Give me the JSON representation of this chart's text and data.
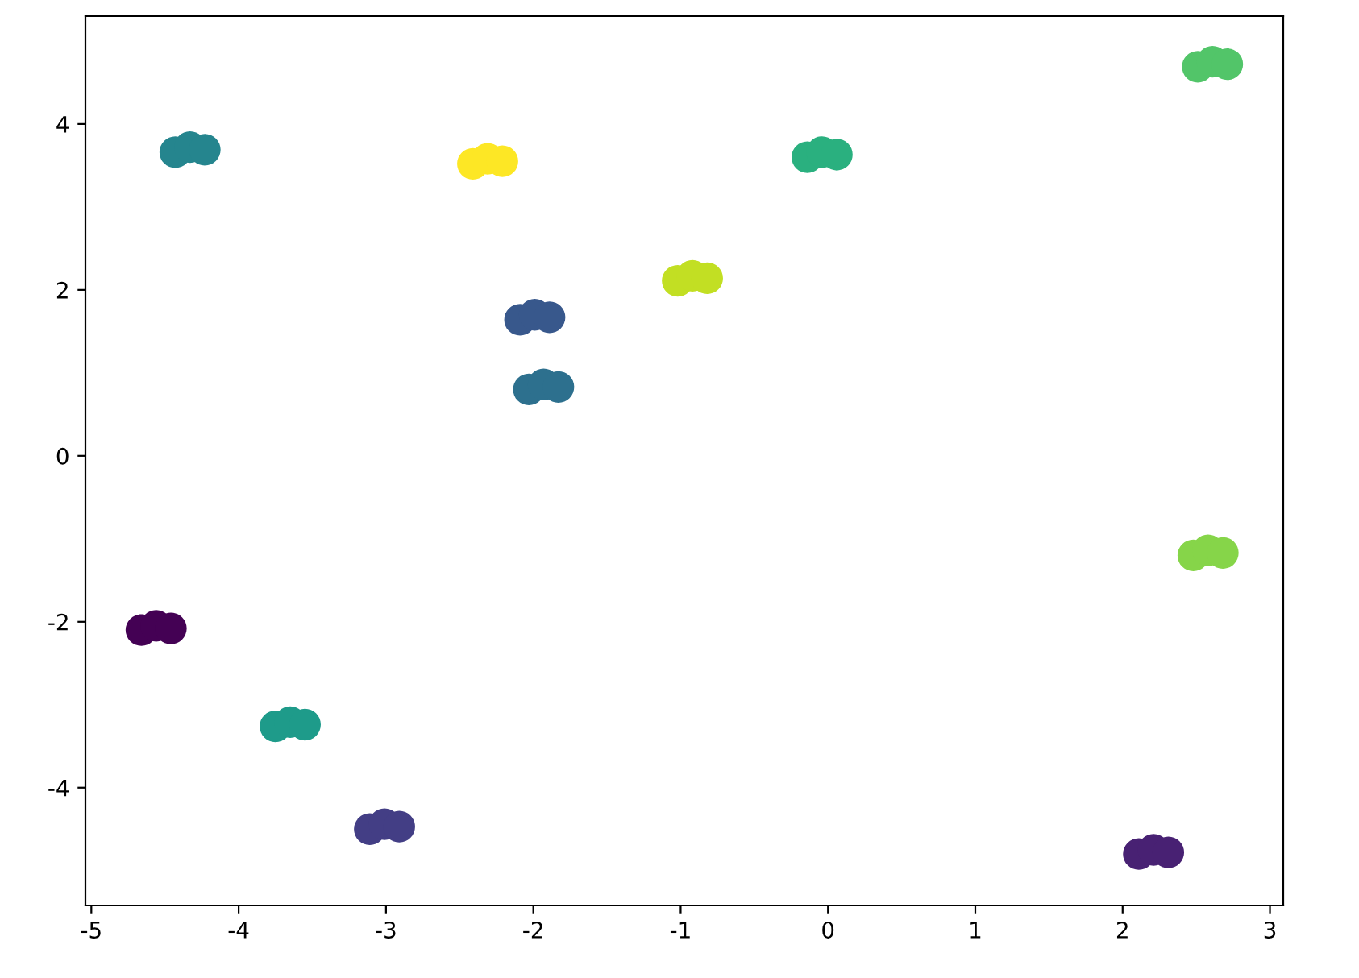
{
  "chart_data": {
    "type": "scatter",
    "marker": "circle",
    "grid": false,
    "legend": false,
    "xlim": [
      -5.04,
      3.09
    ],
    "ylim": [
      -5.42,
      5.3
    ],
    "xticks": [
      -5,
      -4,
      -3,
      -2,
      -1,
      0,
      1,
      2,
      3
    ],
    "yticks": [
      -4,
      -2,
      0,
      2,
      4
    ],
    "series": [
      {
        "x": [
          -4.66,
          -4.56,
          -4.46,
          2.11,
          2.21,
          2.31,
          -3.11,
          -3.01,
          -2.91,
          -2.09,
          -1.99,
          -1.89,
          -2.03,
          -1.93,
          -1.83,
          -4.43,
          -4.33,
          -4.23,
          -3.75,
          -3.65,
          -3.55,
          -0.14,
          -0.04,
          0.06,
          2.51,
          2.61,
          2.71,
          2.48,
          2.58,
          2.68,
          -1.02,
          -0.92,
          -0.82,
          -2.41,
          -2.31,
          -2.21
        ],
        "values": [
          -2.1,
          -2.05,
          -2.08,
          -4.8,
          -4.75,
          -4.78,
          -4.5,
          -4.44,
          -4.47,
          1.64,
          1.7,
          1.67,
          0.8,
          0.86,
          0.83,
          3.66,
          3.72,
          3.69,
          -3.26,
          -3.21,
          -3.24,
          3.6,
          3.66,
          3.63,
          4.69,
          4.75,
          4.72,
          -1.2,
          -1.14,
          -1.17,
          2.11,
          2.17,
          2.14,
          3.52,
          3.58,
          3.55
        ],
        "colors": [
          "#440154",
          "#440154",
          "#440154",
          "#482173",
          "#482173",
          "#482173",
          "#433e85",
          "#433e85",
          "#433e85",
          "#38588c",
          "#38588c",
          "#38588c",
          "#2d708e",
          "#2d708e",
          "#2d708e",
          "#25858e",
          "#25858e",
          "#25858e",
          "#1e9b8a",
          "#1e9b8a",
          "#1e9b8a",
          "#2ab07f",
          "#2ab07f",
          "#2ab07f",
          "#52c569",
          "#52c569",
          "#52c569",
          "#86d549",
          "#86d549",
          "#86d549",
          "#c2df23",
          "#c2df23",
          "#c2df23",
          "#fde725",
          "#fde725",
          "#fde725"
        ]
      }
    ]
  }
}
